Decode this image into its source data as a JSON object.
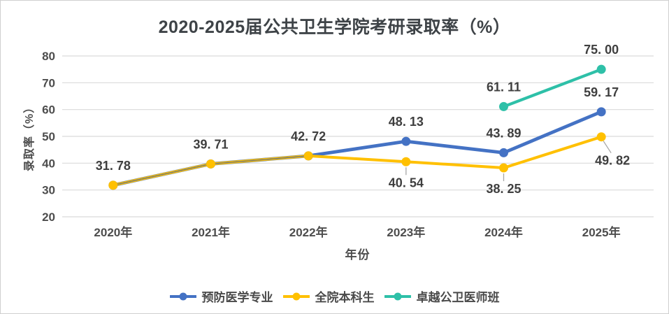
{
  "window": {
    "background": "#ffffff",
    "border_color": "#cfcfcf"
  },
  "chart_data": {
    "type": "line",
    "title": "2020-2025届公共卫生学院考研录取率（%）",
    "title_color": "#3e4347",
    "xlabel": "年份",
    "ylabel": "录取率（%）",
    "categories": [
      "2020年",
      "2021年",
      "2022年",
      "2023年",
      "2024年",
      "2025年"
    ],
    "yticks": [
      20,
      30,
      40,
      50,
      60,
      70,
      80
    ],
    "ylim": [
      20,
      80
    ],
    "grid": "horizontal",
    "gridline_color": "#d9d9d9",
    "axis_text_color": "#4d4d4d",
    "data_label_color": "#3f3f3f",
    "leader_line_color": "#a6a6a6",
    "legend_position": "bottom",
    "series": [
      {
        "name": "预防医学专业",
        "color": "#4472C4",
        "values": [
          31.78,
          39.71,
          42.72,
          48.13,
          43.89,
          59.17
        ],
        "data_labels": [
          "31. 78",
          "39. 71",
          "42. 72",
          "48. 13",
          "43. 89",
          "59. 17"
        ],
        "label_positions": [
          "above",
          "above",
          "above",
          "above",
          "above",
          "above"
        ]
      },
      {
        "name": "全院本科生",
        "color": "#FFC000",
        "values": [
          31.78,
          39.71,
          42.72,
          40.54,
          38.25,
          49.82
        ],
        "data_labels": [
          null,
          null,
          null,
          "40. 54",
          "38. 25",
          "49. 82"
        ],
        "label_positions": [
          null,
          null,
          null,
          "below",
          "below",
          "below-right"
        ]
      },
      {
        "name": "卓越公卫医师班",
        "color": "#2EC0A8",
        "values": [
          null,
          null,
          null,
          null,
          61.11,
          75.0
        ],
        "data_labels": [
          null,
          null,
          null,
          null,
          "61. 11",
          "75. 00"
        ],
        "label_positions": [
          null,
          null,
          null,
          null,
          "above",
          "above"
        ]
      }
    ]
  }
}
